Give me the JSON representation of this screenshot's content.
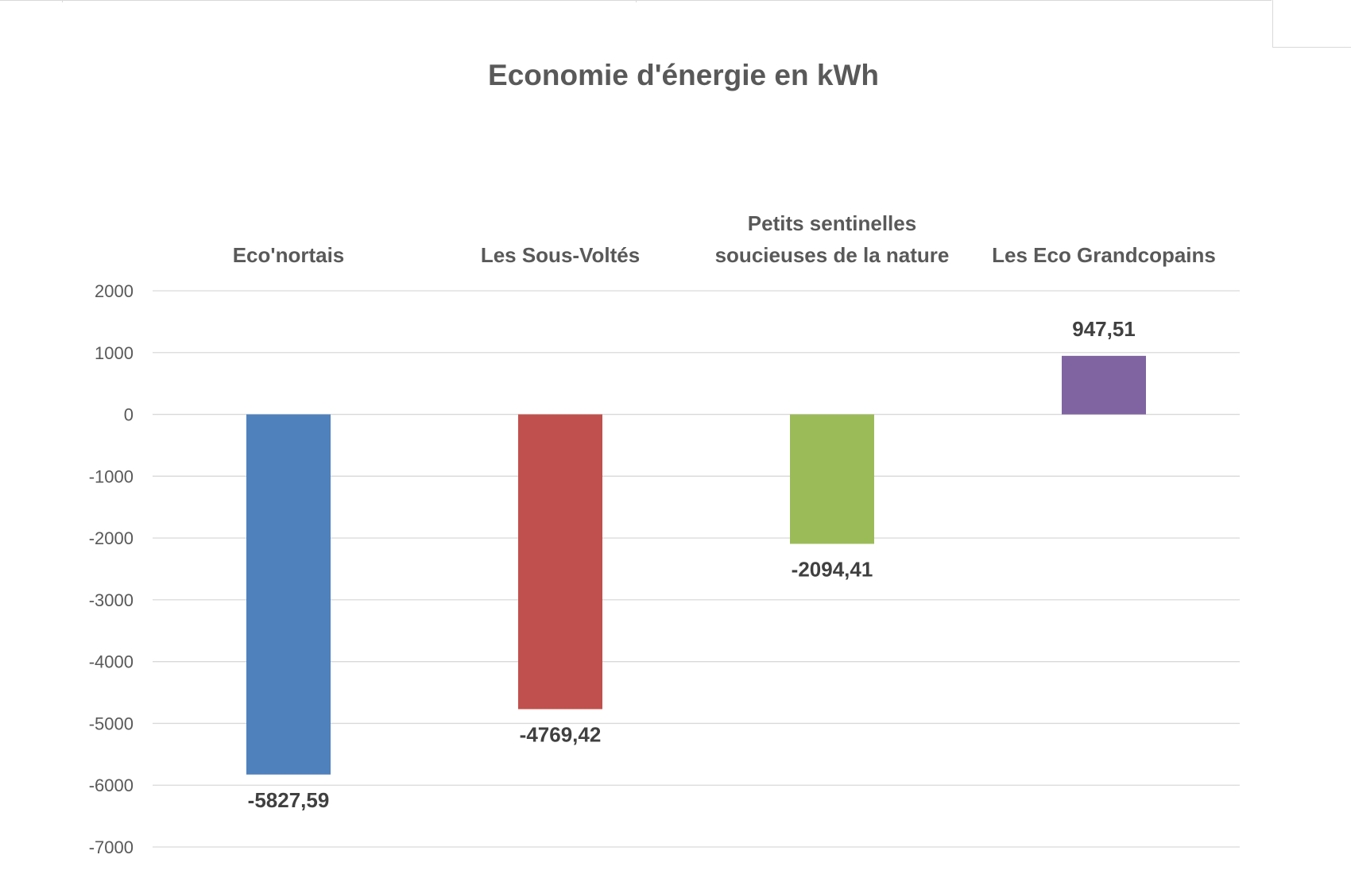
{
  "chart_data": {
    "type": "bar",
    "title": "Economie d'énergie en kWh",
    "categories": [
      [
        "Eco'nortais"
      ],
      [
        "Les Sous-Voltés"
      ],
      [
        "Petits sentinelles",
        "soucieuses de la nature"
      ],
      [
        "Les Eco Grandcopains"
      ]
    ],
    "values": [
      -5827.59,
      -4769.42,
      -2094.41,
      947.51
    ],
    "data_labels": [
      "-5827,59",
      "-4769,42",
      "-2094,41",
      "947,51"
    ],
    "colors": [
      "#4f81bd",
      "#c0504d",
      "#9bbb59",
      "#8064a2"
    ],
    "ylim": [
      -7000,
      2000
    ],
    "yticks": [
      2000,
      1000,
      0,
      -1000,
      -2000,
      -3000,
      -4000,
      -5000,
      -6000,
      -7000
    ],
    "grid": true,
    "category_labels_position": "top",
    "legend": "none"
  }
}
